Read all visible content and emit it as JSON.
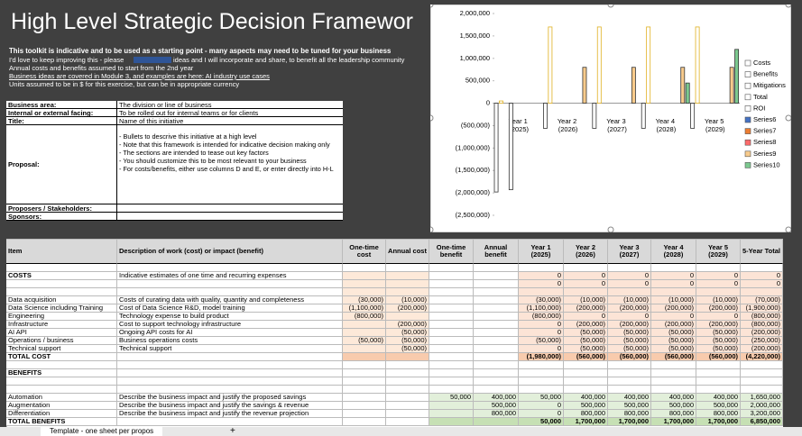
{
  "header": {
    "title": "High Level Strategic Decision Framewor",
    "intro": [
      "This toolkit is indicative and to be used as a starting point - many aspects may need to be tuned for your business",
      "I'd love to keep improving this - please",
      "ideas and I will incorporate and share, to benefit all the leadership community",
      "Annual costs and benefits assumed to start from the 2nd year",
      "Business ideas are covered in Module 3, and examples are here: AI industry use cases",
      "Units assumed to be in $ for this exercise, but can be in appropriate currency"
    ]
  },
  "info_table": {
    "rows": [
      [
        "Business area:",
        "The division or line of business"
      ],
      [
        "Internal or external facing:",
        "To be rolled out for internal teams or for clients"
      ],
      [
        "Title:",
        "Name of this initiative"
      ],
      [
        "Proposal:",
        [
          "- Bullets to descrive this initiative at a high level",
          "- Note that this framework is intended for indicative decision making only",
          "- The sections are intended to tease out key factors",
          "- You should customize this to be most relevant to your business",
          "- For costs/benefits, either use columns D and E, or enter directly into H-L"
        ]
      ],
      [
        "Proposers / Stakeholders:",
        null
      ],
      [
        "Sponsors:",
        null
      ]
    ]
  },
  "main_table": {
    "headers": [
      "Item",
      "Description of work (cost) or impact (benefit)",
      "One-time cost",
      "Annual cost",
      "One-time benefit",
      "Annual benefit",
      "Year 1 (2025)",
      "Year 2 (2026)",
      "Year 3 (2027)",
      "Year 4 (2028)",
      "Year 5 (2029)",
      "5-Year Total"
    ],
    "rows": [
      [
        null,
        null,
        null,
        null,
        null,
        null,
        null,
        null,
        null,
        null,
        null,
        null
      ],
      [
        "COSTS",
        "Indicative estimates of one time and recurring expenses",
        null,
        null,
        null,
        null,
        "0",
        "0",
        "0",
        "0",
        "0",
        "0"
      ],
      [
        null,
        null,
        null,
        null,
        null,
        null,
        "0",
        "0",
        "0",
        "0",
        "0",
        "0"
      ],
      [
        null,
        null,
        null,
        null,
        null,
        null,
        null,
        null,
        null,
        null,
        null,
        null
      ],
      [
        "Data acquisition",
        "Costs of curating data with quality, quantity and completeness",
        "(30,000)",
        "(10,000)",
        null,
        null,
        "(30,000)",
        "(10,000)",
        "(10,000)",
        "(10,000)",
        "(10,000)",
        "(70,000)"
      ],
      [
        "Data Science including Training",
        "Cost of Data Science R&D, model training",
        "(1,100,000)",
        "(200,000)",
        null,
        null,
        "(1,100,000)",
        "(200,000)",
        "(200,000)",
        "(200,000)",
        "(200,000)",
        "(1,900,000)"
      ],
      [
        "Engineering",
        "Technology expense to build product",
        "(800,000)",
        null,
        null,
        null,
        "(800,000)",
        "0",
        "0",
        "0",
        "0",
        "(800,000)"
      ],
      [
        "Infrastructure",
        "Cost to support technology infrastructure",
        null,
        "(200,000)",
        null,
        null,
        "0",
        "(200,000)",
        "(200,000)",
        "(200,000)",
        "(200,000)",
        "(800,000)"
      ],
      [
        "AI API",
        "Ongoing API costs for AI",
        null,
        "(50,000)",
        null,
        null,
        "0",
        "(50,000)",
        "(50,000)",
        "(50,000)",
        "(50,000)",
        "(200,000)"
      ],
      [
        "Operations / business",
        "Business operations costs",
        "(50,000)",
        "(50,000)",
        null,
        null,
        "(50,000)",
        "(50,000)",
        "(50,000)",
        "(50,000)",
        "(50,000)",
        "(250,000)"
      ],
      [
        "Technical support",
        "Technical support",
        null,
        "(50,000)",
        null,
        null,
        "0",
        "(50,000)",
        "(50,000)",
        "(50,000)",
        "(50,000)",
        "(200,000)"
      ],
      [
        "TOTAL COST",
        null,
        null,
        null,
        null,
        null,
        "(1,980,000)",
        "(560,000)",
        "(560,000)",
        "(560,000)",
        "(560,000)",
        "(4,220,000)"
      ],
      [
        null,
        null,
        null,
        null,
        null,
        null,
        null,
        null,
        null,
        null,
        null,
        null
      ],
      [
        "BENEFITS",
        null,
        null,
        null,
        null,
        null,
        null,
        null,
        null,
        null,
        null,
        null
      ],
      [
        null,
        null,
        null,
        null,
        null,
        null,
        null,
        null,
        null,
        null,
        null,
        null
      ],
      [
        null,
        null,
        null,
        null,
        null,
        null,
        null,
        null,
        null,
        null,
        null,
        null
      ],
      [
        "Automation",
        "Describe the business impact and justify the proposed savings",
        null,
        null,
        "50,000",
        "400,000",
        "50,000",
        "400,000",
        "400,000",
        "400,000",
        "400,000",
        "1,650,000"
      ],
      [
        "Augmentation",
        "Describe the business impact and justify the savings & revenue",
        null,
        null,
        null,
        "500,000",
        "0",
        "500,000",
        "500,000",
        "500,000",
        "500,000",
        "2,000,000"
      ],
      [
        "Differentiation",
        "Describe the business impact and justify the revenue projection",
        null,
        null,
        null,
        "800,000",
        "0",
        "800,000",
        "800,000",
        "800,000",
        "800,000",
        "3,200,000"
      ],
      [
        "TOTAL BENEFITS",
        null,
        null,
        null,
        null,
        null,
        "50,000",
        "1,700,000",
        "1,700,000",
        "1,700,000",
        "1,700,000",
        "6,850,000"
      ]
    ]
  },
  "tab": "Template - one sheet per propos",
  "chart_data": {
    "type": "bar",
    "categories": [
      "Year 1 (2025)",
      "Year 2 (2026)",
      "Year 3 (2027)",
      "Year 4 (2028)",
      "Year 5 (2029)"
    ],
    "ylim": [
      -2500000,
      2000000
    ],
    "yticks": [
      {
        "value": 2000000,
        "label": "2,000,000"
      },
      {
        "value": 1500000,
        "label": "1,500,000"
      },
      {
        "value": 1000000,
        "label": "1,000,000"
      },
      {
        "value": 500000,
        "label": "500,000"
      },
      0,
      {
        "value": -500000,
        "label": "(500,000)"
      },
      {
        "value": -1000000,
        "label": "(1,000,000)"
      },
      {
        "value": -1500000,
        "label": "(1,500,000)"
      },
      {
        "value": -2000000,
        "label": "(2,000,000)"
      },
      {
        "value": -2500000,
        "label": "(2,500,000)"
      }
    ],
    "legend": "right",
    "series": [
      {
        "name": "Costs",
        "color": "#ffffff",
        "values": [
          -1980000,
          -560000,
          -560000,
          -560000,
          -560000
        ]
      },
      {
        "name": "Benefits",
        "color": "#ffffff",
        "border": "#e0b020",
        "values": [
          50000,
          1700000,
          1700000,
          1700000,
          1700000
        ]
      },
      {
        "name": "Mitigations",
        "color": "#ffffff",
        "values": [
          null,
          null,
          null,
          null,
          null
        ]
      },
      {
        "name": "Total",
        "color": "#ffffff",
        "values": [
          -1930000,
          null,
          null,
          null,
          null
        ]
      },
      {
        "name": "ROI",
        "color": "#ffffff",
        "values": [
          null,
          null,
          null,
          null,
          null
        ]
      },
      {
        "name": "Series6",
        "color": "#4472c4",
        "values": [
          null,
          null,
          null,
          null,
          null
        ]
      },
      {
        "name": "Series7",
        "color": "#ed7d31",
        "values": [
          null,
          null,
          null,
          null,
          null
        ]
      },
      {
        "name": "Series8",
        "color": "#ff6b6b",
        "values": [
          null,
          null,
          null,
          null,
          null
        ]
      },
      {
        "name": "Series9",
        "color": "#f8cb8c",
        "values": [
          null,
          800000,
          800000,
          800000,
          800000
        ]
      },
      {
        "name": "Series10",
        "color": "#7cc98f",
        "values": [
          null,
          null,
          null,
          450000,
          1200000
        ]
      }
    ]
  }
}
